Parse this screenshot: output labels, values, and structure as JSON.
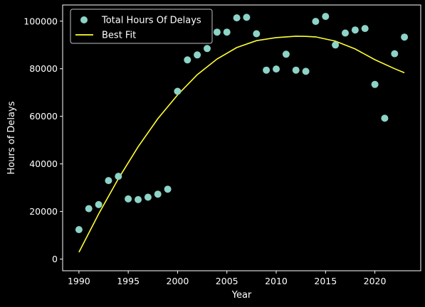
{
  "chart_data": {
    "type": "scatter",
    "xlabel": "Year",
    "ylabel": "Hours of Delays",
    "xlim": [
      1988.35,
      2024.65
    ],
    "ylim": [
      -4900,
      106800
    ],
    "x_ticks": [
      1990,
      1995,
      2000,
      2005,
      2010,
      2015,
      2020
    ],
    "y_ticks": [
      0,
      20000,
      40000,
      60000,
      80000,
      100000
    ],
    "x_tick_labels": [
      "1990",
      "1995",
      "2000",
      "2005",
      "2010",
      "2015",
      "2020"
    ],
    "y_tick_labels": [
      "0",
      "20000",
      "40000",
      "60000",
      "80000",
      "100000"
    ],
    "legend": {
      "placement": "top-left",
      "entries": [
        "Total Hours Of Delays",
        "Best Fit"
      ]
    },
    "grid": false,
    "series": [
      {
        "name": "Total Hours Of Delays",
        "kind": "scatter",
        "color": "#8dd3c7",
        "x": [
          1990,
          1991,
          1992,
          1993,
          1994,
          1995,
          1996,
          1997,
          1998,
          1999,
          2000,
          2001,
          2002,
          2003,
          2004,
          2005,
          2006,
          2007,
          2008,
          2009,
          2010,
          2011,
          2012,
          2013,
          2014,
          2015,
          2016,
          2017,
          2018,
          2019,
          2020,
          2021,
          2022,
          2023
        ],
        "y": [
          12400,
          21200,
          22900,
          33000,
          34800,
          25300,
          25000,
          26000,
          27300,
          29400,
          70500,
          83700,
          85800,
          88500,
          95400,
          95400,
          101400,
          101600,
          94700,
          79400,
          79900,
          86100,
          79400,
          78900,
          99900,
          102000,
          90000,
          95000,
          96300,
          96900,
          73400,
          59200,
          86300,
          93300
        ]
      },
      {
        "name": "Best Fit",
        "kind": "line",
        "color": "#ffff33",
        "x": [
          1990,
          1992,
          1994,
          1996,
          1998,
          2000,
          2002,
          2004,
          2006,
          2008,
          2010,
          2012,
          2013,
          2014,
          2016,
          2018,
          2020,
          2022,
          2023
        ],
        "y": [
          2900,
          19000,
          33800,
          47200,
          59000,
          69000,
          77500,
          84100,
          88900,
          91800,
          93100,
          93700,
          93600,
          93400,
          91600,
          88300,
          83800,
          80000,
          78300
        ]
      }
    ]
  }
}
